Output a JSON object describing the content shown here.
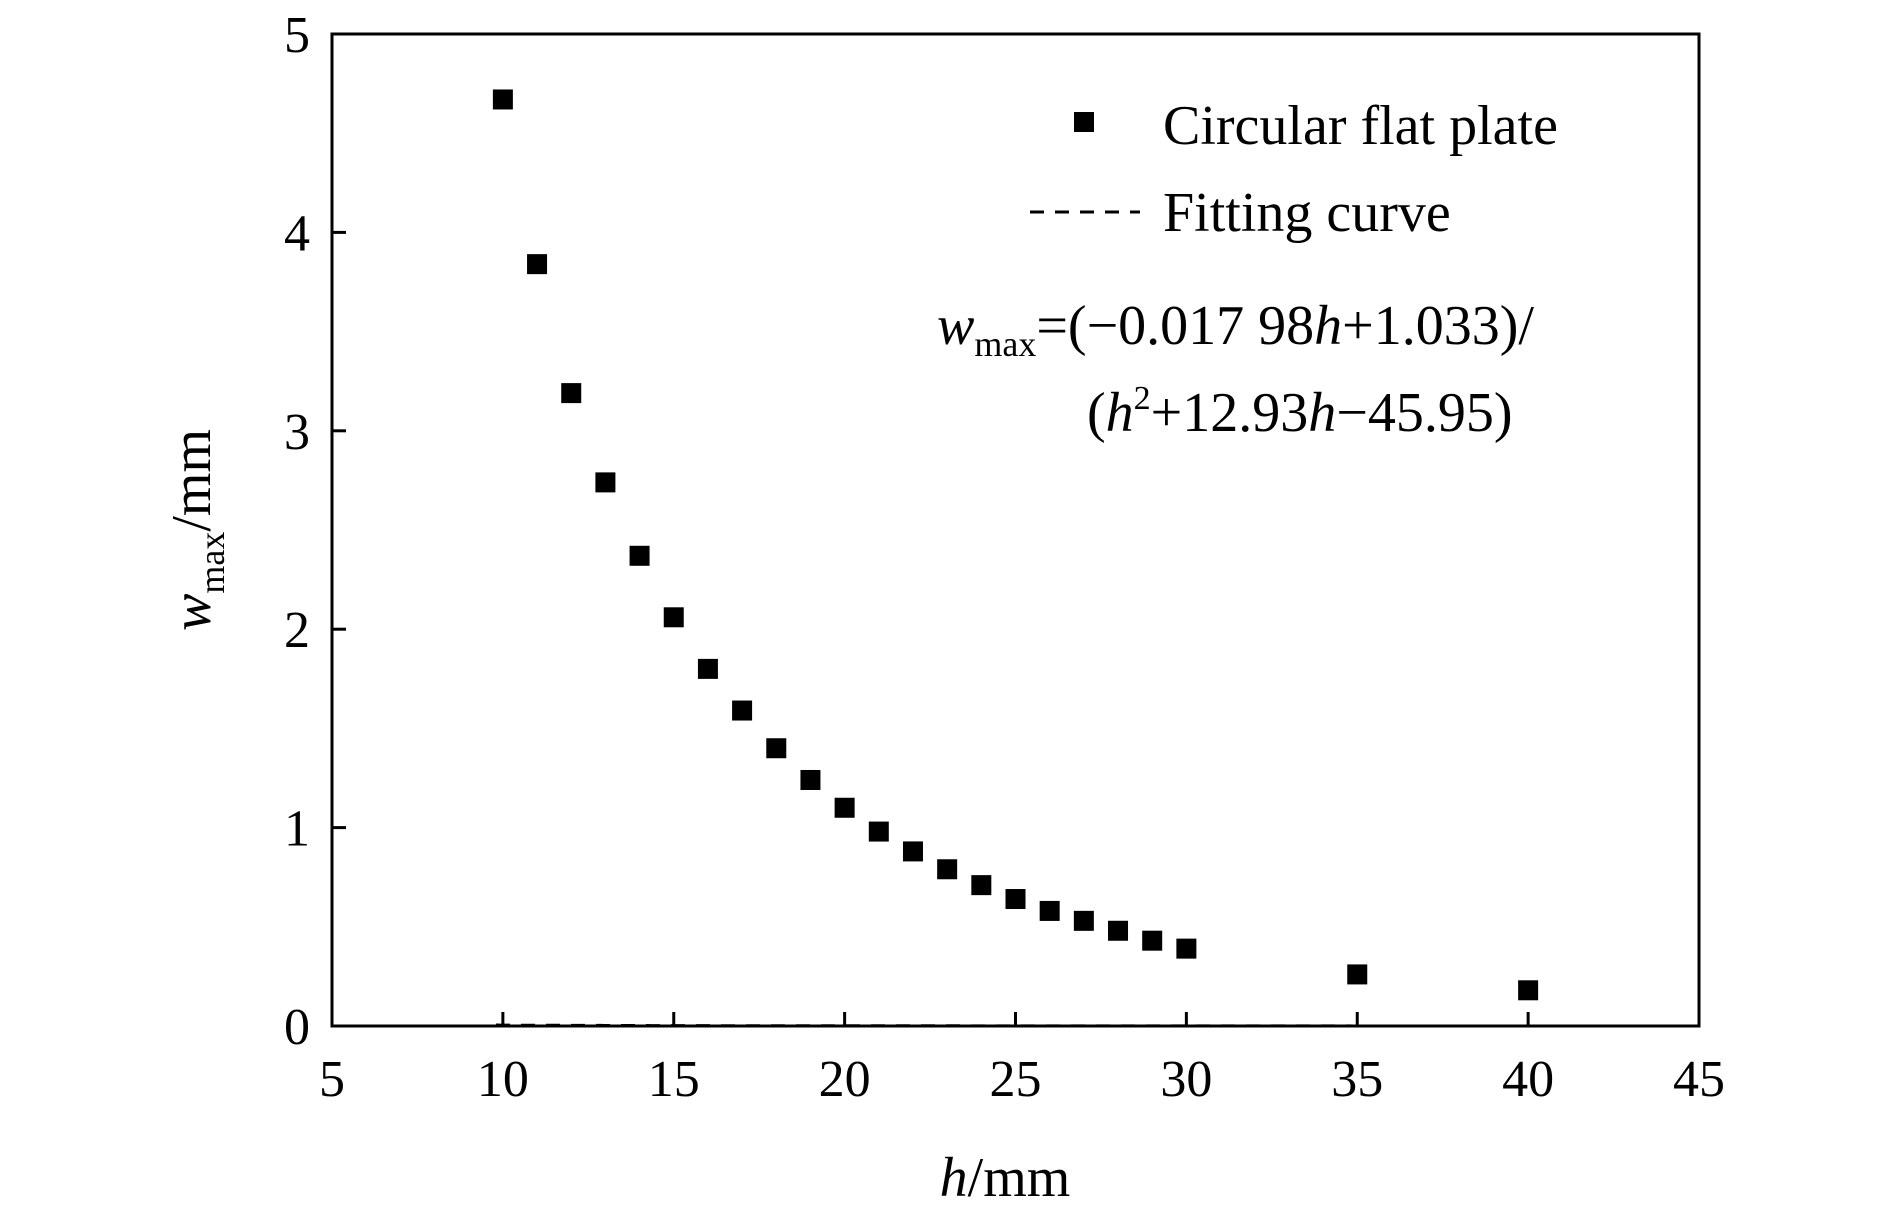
{
  "chart_data": {
    "type": "scatter",
    "xlabel": {
      "var": "h",
      "unit": "/mm"
    },
    "ylabel": {
      "var": "w",
      "sub": "max",
      "unit": "/mm"
    },
    "xlim": [
      5,
      45
    ],
    "ylim": [
      0,
      5
    ],
    "xticks": [
      "5",
      "10",
      "15",
      "20",
      "25",
      "30",
      "35",
      "40",
      "45"
    ],
    "yticks": [
      "0",
      "1",
      "2",
      "3",
      "4",
      "5"
    ],
    "grid": false,
    "legend_position": "top-right",
    "series": [
      {
        "name": "Circular flat plate",
        "type": "scatter",
        "marker": "square",
        "color": "#000000",
        "x": [
          10,
          11,
          12,
          13,
          14,
          15,
          16,
          17,
          18,
          19,
          20,
          21,
          22,
          23,
          24,
          25,
          26,
          27,
          28,
          29,
          30,
          35,
          40
        ],
        "y": [
          4.67,
          3.84,
          3.19,
          2.74,
          2.37,
          2.06,
          1.8,
          1.59,
          1.4,
          1.24,
          1.1,
          0.98,
          0.88,
          0.79,
          0.71,
          0.64,
          0.58,
          0.53,
          0.48,
          0.43,
          0.39,
          0.26,
          0.18
        ]
      },
      {
        "name": "Fitting curve",
        "type": "line",
        "style": "dashed",
        "color": "#000000",
        "x_range": [
          9.8,
          45
        ]
      }
    ],
    "annotation": {
      "line1": {
        "lhs_var": "w",
        "lhs_sub": "max",
        "eq": "=(−0.017 98",
        "v1": "h",
        "p1": "+1.033)/"
      },
      "line2": {
        "open": "(",
        "v1": "h",
        "sup": "2",
        "mid": "+12.93",
        "v2": "h",
        "end": "−45.95)"
      }
    }
  }
}
